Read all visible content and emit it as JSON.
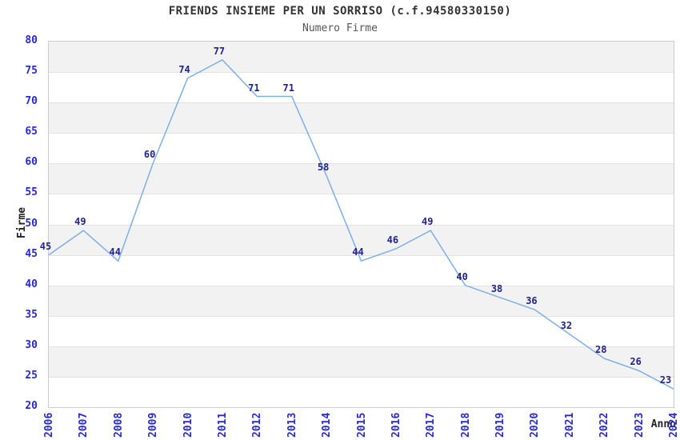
{
  "chart_data": {
    "type": "line",
    "title": "FRIENDS INSIEME PER UN SORRISO (c.f.94580330150)",
    "subtitle": "Numero Firme",
    "xlabel": "Anno",
    "ylabel": "Firme",
    "categories": [
      "2006",
      "2007",
      "2008",
      "2009",
      "2010",
      "2011",
      "2012",
      "2013",
      "2014",
      "2015",
      "2016",
      "2017",
      "2018",
      "2019",
      "2020",
      "2021",
      "2022",
      "2023",
      "2024"
    ],
    "values": [
      45,
      49,
      44,
      60,
      74,
      77,
      71,
      71,
      58,
      44,
      46,
      49,
      40,
      38,
      36,
      32,
      28,
      26,
      23
    ],
    "ylim": [
      20,
      80
    ],
    "ytick_step": 5,
    "grid": "horizontal-bands-alternating",
    "legend": "none",
    "data_labels": "shown above each point",
    "colors": {
      "line": "#7dafe6",
      "tick_label": "#2828d4",
      "data_label": "#222288",
      "band_gray": "#f2f2f2",
      "band_white": "#ffffff",
      "gridline": "#e2e2e2",
      "plot_border": "#cccccc",
      "title": "#333333",
      "subtitle": "#555555",
      "axis_title": "#222222"
    }
  }
}
